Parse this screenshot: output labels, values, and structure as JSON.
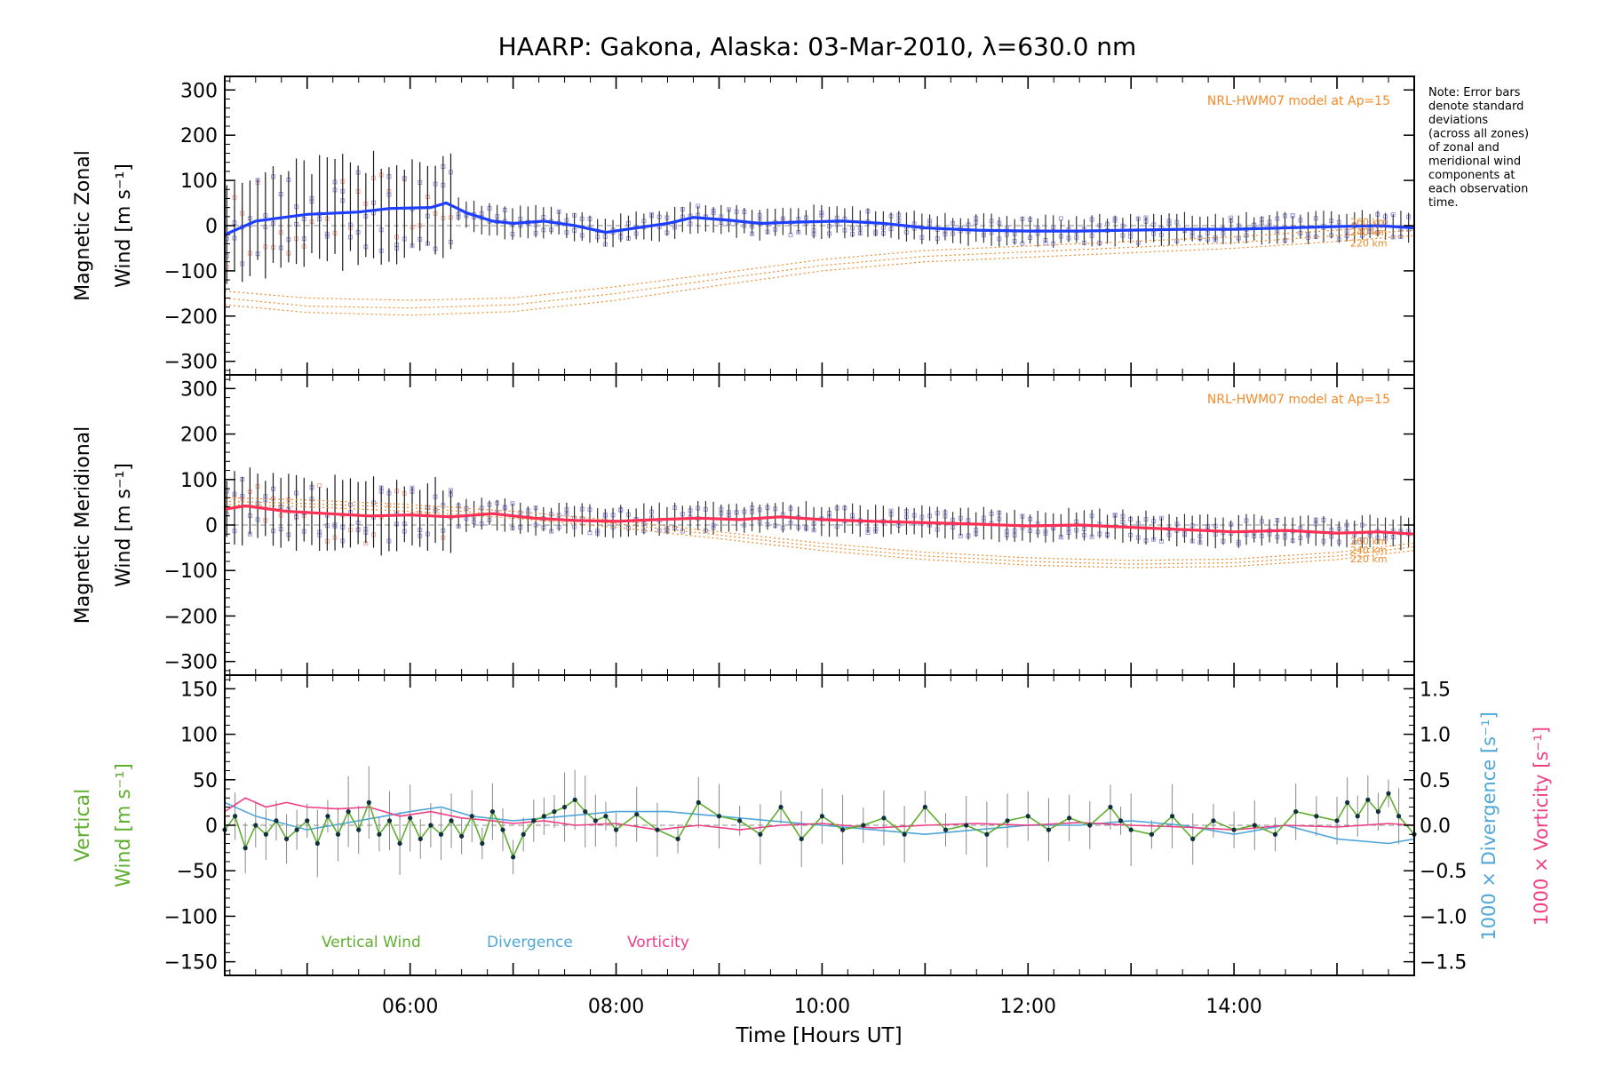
{
  "title": "HAARP: Gakona,  Alaska: 03-Mar-2010, λ=630.0 nm",
  "note": [
    "Note: Error bars",
    "denote standard",
    "deviations",
    "(across all zones)",
    "of zonal and",
    "meridional wind",
    "components at",
    "each observation",
    "time."
  ],
  "colors": {
    "zonal_fit": "#1f3fff",
    "meridional_fit": "#ff2f55",
    "model": "#f08a2a",
    "scatter": "#9a9ae0",
    "vertical": "#5fae2e",
    "divergence": "#4fa6d8",
    "vorticity": "#ee3e86",
    "axis": "#000000"
  },
  "chart_data": [
    {
      "type": "line",
      "panel": "zonal",
      "ylabel": [
        "Magnetic Zonal",
        "Wind [m s⁻¹]"
      ],
      "ylim": [
        -330,
        330
      ],
      "yticks": [
        300,
        200,
        100,
        0,
        -100,
        -200,
        -300
      ],
      "xlim": [
        4.2,
        15.75
      ],
      "model_label": "NRL-HWM07 model at Ap=15",
      "model_altitudes": [
        "260 km",
        "240 km",
        "220 km"
      ],
      "series": [
        {
          "role": "fit",
          "x": [
            4.2,
            4.5,
            5.0,
            5.5,
            5.8,
            6.2,
            6.35,
            6.55,
            6.8,
            7.0,
            7.3,
            7.6,
            7.9,
            8.2,
            8.5,
            8.75,
            9.1,
            9.4,
            9.8,
            10.2,
            10.6,
            11.0,
            11.5,
            12.0,
            12.5,
            13.0,
            13.5,
            14.0,
            14.5,
            15.0,
            15.4,
            15.75
          ],
          "y": [
            -20,
            10,
            25,
            30,
            38,
            40,
            50,
            28,
            10,
            5,
            10,
            0,
            -15,
            -5,
            5,
            18,
            12,
            5,
            8,
            10,
            5,
            -5,
            -10,
            -12,
            -12,
            -10,
            -8,
            -8,
            -5,
            -2,
            0,
            -5
          ]
        },
        {
          "role": "model-260",
          "x": [
            4.2,
            5.0,
            6.0,
            7.0,
            8.0,
            9.0,
            10.0,
            11.0,
            12.0,
            13.0,
            14.0,
            15.0,
            15.75
          ],
          "y": [
            -145,
            -160,
            -165,
            -160,
            -135,
            -105,
            -75,
            -55,
            -45,
            -35,
            -25,
            -10,
            0
          ]
        },
        {
          "role": "model-240",
          "x": [
            4.2,
            5.0,
            6.0,
            7.0,
            8.0,
            9.0,
            10.0,
            11.0,
            12.0,
            13.0,
            14.0,
            15.0,
            15.75
          ],
          "y": [
            -160,
            -178,
            -182,
            -175,
            -150,
            -118,
            -88,
            -68,
            -58,
            -48,
            -38,
            -22,
            -10
          ]
        },
        {
          "role": "model-220",
          "x": [
            4.2,
            5.0,
            6.0,
            7.0,
            8.0,
            9.0,
            10.0,
            11.0,
            12.0,
            13.0,
            14.0,
            15.0,
            15.75
          ],
          "y": [
            -175,
            -192,
            -198,
            -190,
            -165,
            -132,
            -100,
            -80,
            -70,
            -60,
            -50,
            -35,
            -22
          ]
        }
      ]
    },
    {
      "type": "line",
      "panel": "meridional",
      "ylabel": [
        "Magnetic Meridional",
        "Wind [m s⁻¹]"
      ],
      "ylim": [
        -330,
        330
      ],
      "yticks": [
        300,
        200,
        100,
        0,
        -100,
        -200,
        -300
      ],
      "xlim": [
        4.2,
        15.75
      ],
      "model_label": "NRL-HWM07 model at Ap=15",
      "model_altitudes": [
        "260 km",
        "240 km",
        "220 km"
      ],
      "series": [
        {
          "role": "fit",
          "x": [
            4.2,
            4.4,
            4.8,
            5.2,
            5.6,
            6.0,
            6.4,
            6.8,
            7.2,
            7.6,
            8.0,
            8.4,
            8.8,
            9.2,
            9.6,
            10.0,
            10.5,
            11.0,
            11.5,
            12.0,
            12.5,
            13.0,
            13.5,
            14.0,
            14.5,
            15.0,
            15.4,
            15.75
          ],
          "y": [
            35,
            42,
            30,
            25,
            20,
            22,
            18,
            25,
            15,
            10,
            8,
            12,
            15,
            12,
            18,
            12,
            8,
            5,
            2,
            -2,
            0,
            -5,
            -10,
            -15,
            -12,
            -18,
            -15,
            -20
          ]
        },
        {
          "role": "model-260",
          "x": [
            4.2,
            5.0,
            6.0,
            7.0,
            8.0,
            9.0,
            10.0,
            11.0,
            12.0,
            13.0,
            14.0,
            15.0,
            15.75
          ],
          "y": [
            60,
            55,
            45,
            30,
            10,
            -15,
            -40,
            -60,
            -72,
            -78,
            -75,
            -60,
            -40
          ]
        },
        {
          "role": "model-240",
          "x": [
            4.2,
            5.0,
            6.0,
            7.0,
            8.0,
            9.0,
            10.0,
            11.0,
            12.0,
            13.0,
            14.0,
            15.0,
            15.75
          ],
          "y": [
            52,
            47,
            38,
            22,
            3,
            -22,
            -48,
            -68,
            -80,
            -86,
            -83,
            -68,
            -48
          ]
        },
        {
          "role": "model-220",
          "x": [
            4.2,
            5.0,
            6.0,
            7.0,
            8.0,
            9.0,
            10.0,
            11.0,
            12.0,
            13.0,
            14.0,
            15.0,
            15.75
          ],
          "y": [
            45,
            40,
            30,
            15,
            -5,
            -30,
            -56,
            -76,
            -88,
            -94,
            -91,
            -76,
            -56
          ]
        }
      ]
    },
    {
      "type": "line",
      "panel": "vertical",
      "ylabel": [
        "Vertical",
        "Wind [m s⁻¹]"
      ],
      "ylim": [
        -165,
        165
      ],
      "yticks": [
        150,
        100,
        50,
        0,
        -50,
        -100,
        -150
      ],
      "y2label_divergence": "1000 × Divergence [s⁻¹]",
      "y2label_vorticity": "1000 × Vorticity [s⁻¹]",
      "y2lim": [
        -1.65,
        1.65
      ],
      "y2ticks": [
        "1.5",
        "1.0",
        "0.5",
        "0.0",
        "−0.5",
        "−1.0",
        "−1.5"
      ],
      "xlim": [
        4.2,
        15.75
      ],
      "xticks": [
        "06:00",
        "08:00",
        "10:00",
        "12:00",
        "14:00"
      ],
      "xtick_values": [
        6,
        8,
        10,
        12,
        14
      ],
      "xlabel": "Time [Hours UT]",
      "legend": [
        "Vertical Wind",
        "Divergence",
        "Vorticity"
      ],
      "series": [
        {
          "name": "Vertical Wind",
          "x": [
            4.2,
            4.3,
            4.4,
            4.5,
            4.6,
            4.7,
            4.8,
            4.9,
            5.0,
            5.1,
            5.2,
            5.3,
            5.4,
            5.5,
            5.6,
            5.7,
            5.8,
            5.9,
            6.0,
            6.1,
            6.2,
            6.3,
            6.4,
            6.5,
            6.6,
            6.7,
            6.8,
            6.9,
            7.0,
            7.1,
            7.2,
            7.3,
            7.4,
            7.5,
            7.6,
            7.7,
            7.8,
            7.9,
            8.0,
            8.2,
            8.4,
            8.6,
            8.8,
            9.0,
            9.2,
            9.4,
            9.6,
            9.8,
            10.0,
            10.2,
            10.4,
            10.6,
            10.8,
            11.0,
            11.2,
            11.4,
            11.6,
            11.8,
            12.0,
            12.2,
            12.4,
            12.6,
            12.8,
            12.9,
            13.0,
            13.2,
            13.4,
            13.6,
            13.8,
            14.0,
            14.2,
            14.4,
            14.6,
            14.8,
            15.0,
            15.1,
            15.2,
            15.3,
            15.4,
            15.5,
            15.6,
            15.75
          ],
          "y": [
            -5,
            10,
            -25,
            0,
            -10,
            5,
            -15,
            -5,
            5,
            -20,
            10,
            -10,
            15,
            -5,
            25,
            -10,
            5,
            -20,
            8,
            -15,
            0,
            -10,
            5,
            -12,
            10,
            -20,
            15,
            -5,
            -35,
            -10,
            5,
            10,
            15,
            20,
            28,
            15,
            5,
            10,
            -5,
            12,
            -5,
            -15,
            25,
            10,
            5,
            -10,
            20,
            -15,
            10,
            -5,
            0,
            8,
            -10,
            20,
            -5,
            0,
            -10,
            5,
            10,
            -5,
            8,
            0,
            20,
            5,
            -5,
            -10,
            10,
            -15,
            5,
            -5,
            0,
            -10,
            15,
            10,
            5,
            25,
            10,
            28,
            15,
            35,
            10,
            -10
          ]
        },
        {
          "name": "Divergence",
          "x": [
            4.2,
            4.5,
            5.0,
            5.5,
            6.0,
            6.3,
            6.6,
            7.0,
            7.5,
            8.0,
            8.5,
            9.0,
            9.5,
            10.0,
            10.5,
            11.0,
            11.5,
            12.0,
            12.5,
            13.0,
            13.5,
            14.0,
            14.5,
            15.0,
            15.5,
            15.75
          ],
          "y": [
            0.25,
            0.1,
            -0.05,
            0.05,
            0.15,
            0.2,
            0.1,
            0.05,
            0.1,
            0.15,
            0.15,
            0.1,
            0.05,
            0.0,
            -0.05,
            -0.1,
            -0.05,
            0.0,
            0.0,
            0.05,
            0.0,
            -0.1,
            0.0,
            -0.15,
            -0.2,
            -0.15
          ]
        },
        {
          "name": "Vorticity",
          "x": [
            4.2,
            4.4,
            4.6,
            4.8,
            5.0,
            5.3,
            5.6,
            5.9,
            6.2,
            6.5,
            6.8,
            7.0,
            7.3,
            7.6,
            8.0,
            8.4,
            8.8,
            9.2,
            9.6,
            10.0,
            10.5,
            11.0,
            11.5,
            12.0,
            12.5,
            13.0,
            13.5,
            14.0,
            14.5,
            15.0,
            15.5,
            15.75
          ],
          "y": [
            0.15,
            0.3,
            0.2,
            0.25,
            0.2,
            0.18,
            0.2,
            0.1,
            0.15,
            0.08,
            0.05,
            0.02,
            0.05,
            0.0,
            0.02,
            -0.05,
            0.0,
            -0.05,
            0.0,
            0.02,
            -0.03,
            0.0,
            0.02,
            0.0,
            0.03,
            0.0,
            -0.02,
            -0.05,
            0.0,
            -0.02,
            0.02,
            0.0
          ]
        }
      ]
    }
  ]
}
